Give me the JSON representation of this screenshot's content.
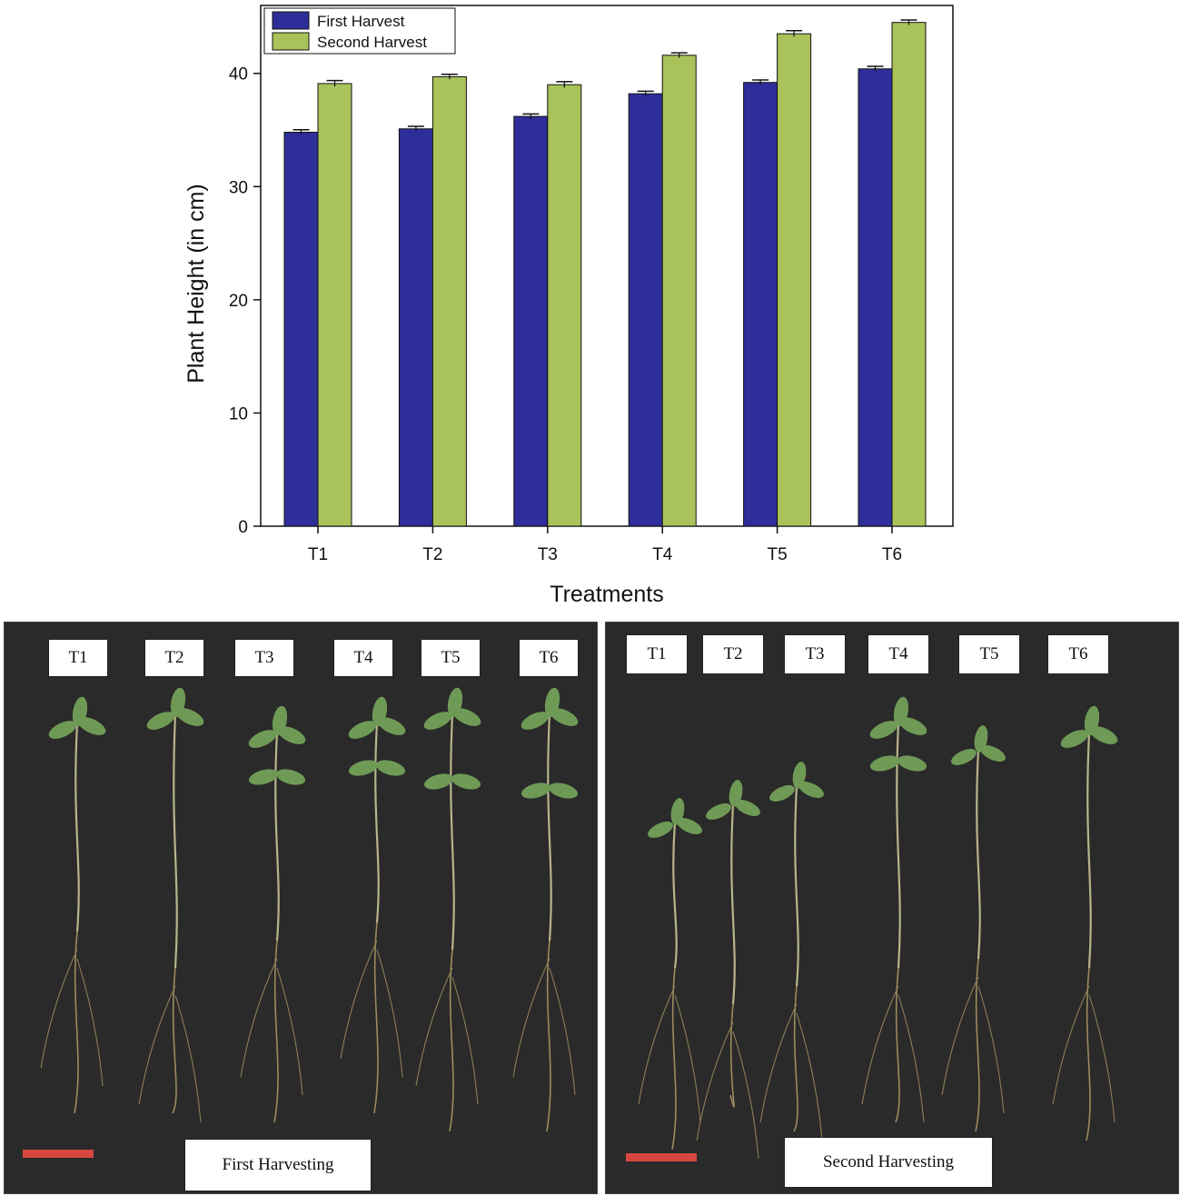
{
  "chart_data": {
    "type": "bar",
    "categories": [
      "T1",
      "T2",
      "T3",
      "T4",
      "T5",
      "T6"
    ],
    "series": [
      {
        "name": "First Harvest",
        "color": "#2e2e9a",
        "values": [
          34.8,
          35.1,
          36.2,
          38.2,
          39.2,
          40.4
        ],
        "errors": [
          0.1,
          0.1,
          0.1,
          0.1,
          0.1,
          0.1
        ]
      },
      {
        "name": "Second Harvest",
        "color": "#a9c25a",
        "values": [
          39.1,
          39.7,
          39.0,
          41.6,
          43.5,
          44.5
        ],
        "errors": [
          0.15,
          0.1,
          0.15,
          0.1,
          0.15,
          0.1
        ]
      }
    ],
    "xlabel": "Treatments",
    "ylabel": "Plant Height (in cm)",
    "ylim": [
      0,
      46
    ],
    "yticks": [
      0,
      10,
      20,
      30,
      40
    ],
    "legend_position": "top-left",
    "grid": false
  },
  "photos": {
    "left": {
      "labels": [
        "T1",
        "T2",
        "T3",
        "T4",
        "T5",
        "T6"
      ],
      "caption": "First Harvesting"
    },
    "right": {
      "labels": [
        "T1",
        "T2",
        "T3",
        "T4",
        "T5",
        "T6"
      ],
      "caption": "Second Harvesting"
    }
  },
  "colors": {
    "photo_background": "#2a2a2a",
    "scale_bar": "#d8473f",
    "stem": "#b8b48a",
    "leaf": "#6f9a56"
  }
}
